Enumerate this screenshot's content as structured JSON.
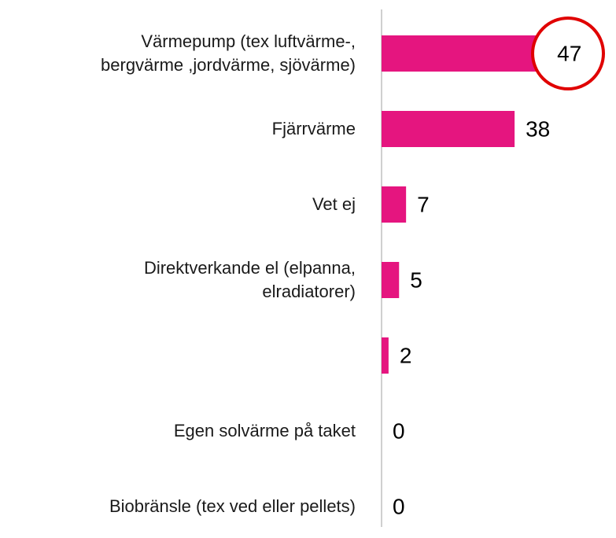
{
  "chart_data": {
    "type": "bar",
    "orientation": "horizontal",
    "categories": [
      "Värmepump (tex luftvärme-,\nbergvärme ,jordvärme, sjövärme)",
      "Fjärrvärme",
      "Vet ej",
      "Direktverkande el (elpanna,\nelradiatorer)",
      null,
      "Egen solvärme på taket",
      "Biobränsle (tex ved eller pellets)"
    ],
    "values": [
      47,
      38,
      7,
      5,
      2,
      0,
      0
    ],
    "color": "#e5157f"
  }
}
